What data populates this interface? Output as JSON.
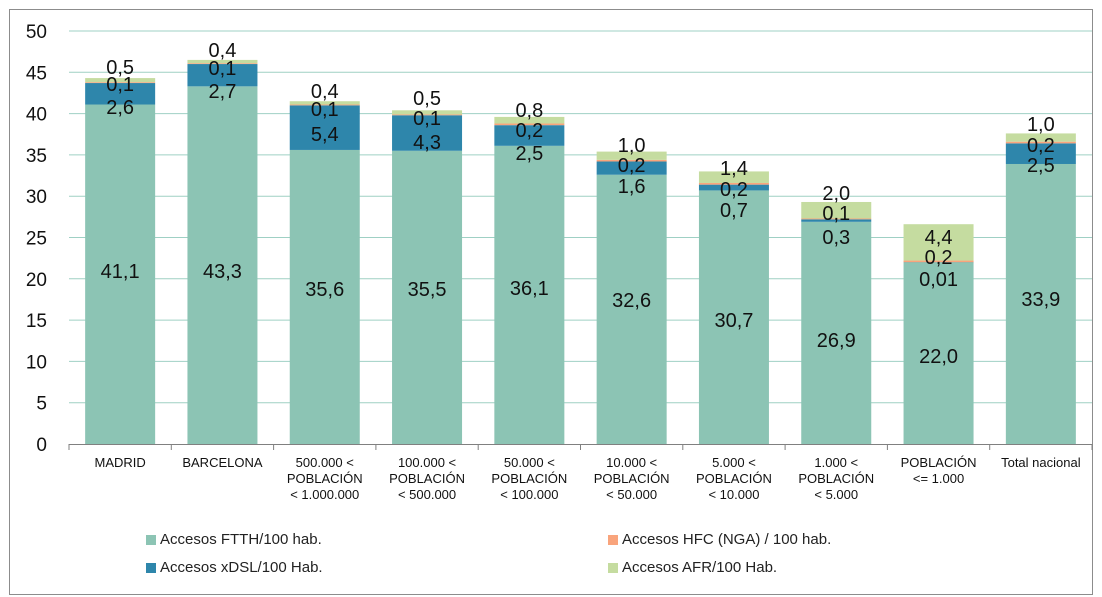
{
  "chart_data": {
    "type": "bar",
    "stacked": true,
    "categories": [
      "MADRID",
      "BARCELONA",
      "500.000 <\nPOBLACIÓN\n< 1.000.000",
      "100.000 <\nPOBLACIÓN\n< 500.000",
      "50.000 <\nPOBLACIÓN\n< 100.000",
      "10.000 <\nPOBLACIÓN\n< 50.000",
      "5.000 <\nPOBLACIÓN\n< 10.000",
      "1.000 <\nPOBLACIÓN\n< 5.000",
      "POBLACIÓN\n<= 1.000",
      "Total nacional"
    ],
    "series": [
      {
        "name": "Accesos FTTH/100 hab.",
        "color": "#8cc4b4",
        "values": [
          41.1,
          43.3,
          35.6,
          35.5,
          36.1,
          32.6,
          30.7,
          26.9,
          22.0,
          33.9
        ],
        "labels": [
          "41,1",
          "43,3",
          "35,6",
          "35,5",
          "36,1",
          "32,6",
          "30,7",
          "26,9",
          "22,0",
          "33,9"
        ]
      },
      {
        "name": "Accesos xDSL/100 Hab.",
        "color": "#2e86ab",
        "values": [
          2.6,
          2.7,
          5.4,
          4.3,
          2.5,
          1.6,
          0.7,
          0.3,
          0.01,
          2.5
        ],
        "labels": [
          "2,6",
          "2,7",
          "5,4",
          "4,3",
          "2,5",
          "1,6",
          "0,7",
          "0,3",
          "0,01",
          "2,5"
        ]
      },
      {
        "name": "Accesos HFC (NGA) / 100 hab.",
        "color": "#f9a47c",
        "values": [
          0.1,
          0.1,
          0.1,
          0.1,
          0.2,
          0.2,
          0.2,
          0.1,
          0.2,
          0.2
        ],
        "labels": [
          "0,1",
          "0,1",
          "0,1",
          "0,1",
          "0,2",
          "0,2",
          "0,2",
          "0,1",
          "0,2",
          "0,2"
        ]
      },
      {
        "name": "Accesos AFR/100 Hab.",
        "color": "#c5dca0",
        "values": [
          0.5,
          0.4,
          0.4,
          0.5,
          0.8,
          1.0,
          1.4,
          2.0,
          4.4,
          1.0
        ],
        "labels": [
          "0,5",
          "0,4",
          "0,4",
          "0,5",
          "0,8",
          "1,0",
          "1,4",
          "2,0",
          "4,4",
          "1,0"
        ]
      }
    ],
    "ylim": [
      0,
      50
    ],
    "yticks": [
      0,
      5,
      10,
      15,
      20,
      25,
      30,
      35,
      40,
      45,
      50
    ],
    "grid": true,
    "legend_position": "bottom",
    "legend_order": [
      "Accesos FTTH/100 hab.",
      "Accesos HFC (NGA) / 100 hab.",
      "Accesos xDSL/100 Hab.",
      "Accesos AFR/100 Hab."
    ],
    "gridline_color": "#9fd0c4",
    "axis_color": "#808080",
    "text_color": "#111111"
  }
}
